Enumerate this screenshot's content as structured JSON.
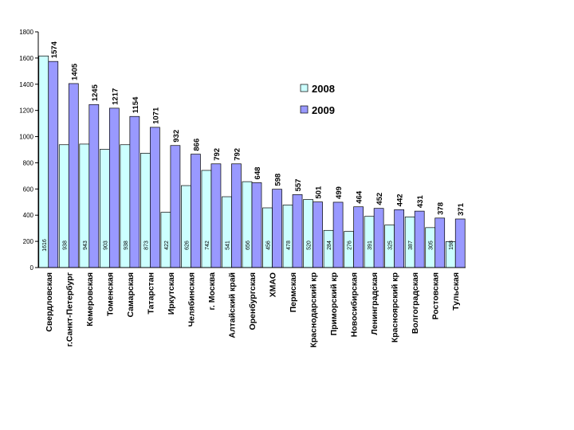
{
  "chart_data": {
    "type": "bar",
    "categories": [
      "Свердловская",
      "г.Санкт-Петербург",
      "Кемеровская",
      "Томенская",
      "Самарская",
      "Татарстан",
      "Иркутская",
      "Челябинская",
      "г. Москва",
      "Алтайский край",
      "Оренбургская",
      "ХМАО",
      "Пермская",
      "Краснодарский кр",
      "Приморский кр",
      "Новосибирская",
      "Ленинградская",
      "Красноярский кр",
      "Волгоградская",
      "Ростовская",
      "Тульская"
    ],
    "series": [
      {
        "name": "2008",
        "color": "#CCFFFF",
        "values": [
          1616,
          938,
          943,
          903,
          938,
          873,
          422,
          626,
          742,
          541,
          656,
          456,
          478,
          520,
          284,
          276,
          391,
          325,
          387,
          305,
          198
        ]
      },
      {
        "name": "2009",
        "color": "#9999FF",
        "values": [
          1574,
          1405,
          1245,
          1217,
          1154,
          1071,
          932,
          866,
          792,
          792,
          648,
          598,
          557,
          501,
          499,
          464,
          452,
          442,
          431,
          378,
          371
        ]
      }
    ],
    "ylim": [
      0,
      1800
    ],
    "yticks": [
      0,
      200,
      400,
      600,
      800,
      1000,
      1200,
      1400,
      1600,
      1800
    ],
    "grid": false,
    "legend": "top-right",
    "title": "",
    "xlabel": "",
    "ylabel": ""
  }
}
